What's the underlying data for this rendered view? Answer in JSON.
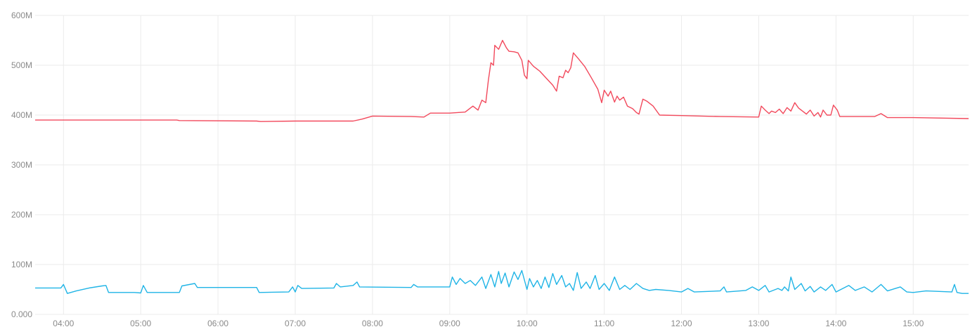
{
  "chart_data": {
    "type": "line",
    "title": "",
    "xlabel": "",
    "ylabel": "",
    "ylim": [
      0,
      600000000
    ],
    "grid": true,
    "legend": "none",
    "y_ticks": [
      {
        "value": 0,
        "label": "0.000"
      },
      {
        "value": 100000000,
        "label": "100M"
      },
      {
        "value": 200000000,
        "label": "200M"
      },
      {
        "value": 300000000,
        "label": "300M"
      },
      {
        "value": 400000000,
        "label": "400M"
      },
      {
        "value": 500000000,
        "label": "500M"
      },
      {
        "value": 600000000,
        "label": "600M"
      }
    ],
    "x_range": [
      "03:38",
      "15:43"
    ],
    "x_ticks": [
      "04:00",
      "05:00",
      "06:00",
      "07:00",
      "08:00",
      "09:00",
      "10:00",
      "11:00",
      "12:00",
      "13:00",
      "14:00",
      "15:00"
    ],
    "series": [
      {
        "color": "#f2495c",
        "points": [
          [
            "03:38",
            390
          ],
          [
            "05:00",
            390
          ],
          [
            "05:28",
            390
          ],
          [
            "05:30",
            389
          ],
          [
            "06:30",
            388
          ],
          [
            "06:33",
            387
          ],
          [
            "07:00",
            388
          ],
          [
            "07:45",
            388
          ],
          [
            "07:52",
            392
          ],
          [
            "08:00",
            398
          ],
          [
            "08:30",
            397
          ],
          [
            "08:40",
            396
          ],
          [
            "08:45",
            404
          ],
          [
            "09:00",
            404
          ],
          [
            "09:12",
            406
          ],
          [
            "09:18",
            418
          ],
          [
            "09:22",
            410
          ],
          [
            "09:25",
            430
          ],
          [
            "09:28",
            425
          ],
          [
            "09:30",
            470
          ],
          [
            "09:32",
            505
          ],
          [
            "09:34",
            500
          ],
          [
            "09:35",
            540
          ],
          [
            "09:38",
            532
          ],
          [
            "09:41",
            550
          ],
          [
            "09:44",
            535
          ],
          [
            "09:46",
            528
          ],
          [
            "09:50",
            527
          ],
          [
            "09:53",
            525
          ],
          [
            "09:56",
            510
          ],
          [
            "09:58",
            480
          ],
          [
            "10:00",
            473
          ],
          [
            "10:01",
            510
          ],
          [
            "10:05",
            498
          ],
          [
            "10:10",
            488
          ],
          [
            "10:15",
            474
          ],
          [
            "10:20",
            460
          ],
          [
            "10:23",
            448
          ],
          [
            "10:25",
            478
          ],
          [
            "10:28",
            475
          ],
          [
            "10:30",
            490
          ],
          [
            "10:32",
            485
          ],
          [
            "10:34",
            495
          ],
          [
            "10:36",
            525
          ],
          [
            "10:40",
            513
          ],
          [
            "10:45",
            497
          ],
          [
            "10:50",
            475
          ],
          [
            "10:55",
            452
          ],
          [
            "10:58",
            425
          ],
          [
            "11:00",
            450
          ],
          [
            "11:03",
            438
          ],
          [
            "11:05",
            448
          ],
          [
            "11:08",
            426
          ],
          [
            "11:10",
            438
          ],
          [
            "11:12",
            430
          ],
          [
            "11:15",
            436
          ],
          [
            "11:18",
            418
          ],
          [
            "11:22",
            413
          ],
          [
            "11:25",
            405
          ],
          [
            "11:27",
            402
          ],
          [
            "11:30",
            432
          ],
          [
            "11:33",
            428
          ],
          [
            "11:38",
            418
          ],
          [
            "11:43",
            400
          ],
          [
            "12:00",
            399
          ],
          [
            "12:30",
            397
          ],
          [
            "13:00",
            396
          ],
          [
            "13:02",
            418
          ],
          [
            "13:05",
            410
          ],
          [
            "13:08",
            403
          ],
          [
            "13:10",
            408
          ],
          [
            "13:13",
            405
          ],
          [
            "13:16",
            412
          ],
          [
            "13:19",
            403
          ],
          [
            "13:22",
            415
          ],
          [
            "13:25",
            408
          ],
          [
            "13:28",
            425
          ],
          [
            "13:31",
            414
          ],
          [
            "13:34",
            408
          ],
          [
            "13:37",
            402
          ],
          [
            "13:40",
            410
          ],
          [
            "13:43",
            398
          ],
          [
            "13:46",
            405
          ],
          [
            "13:48",
            396
          ],
          [
            "13:50",
            410
          ],
          [
            "13:53",
            400
          ],
          [
            "13:56",
            400
          ],
          [
            "13:58",
            420
          ],
          [
            "14:01",
            410
          ],
          [
            "14:03",
            397
          ],
          [
            "14:20",
            397
          ],
          [
            "14:30",
            397
          ],
          [
            "14:35",
            403
          ],
          [
            "14:40",
            395
          ],
          [
            "15:00",
            395
          ],
          [
            "15:43",
            393
          ]
        ]
      },
      {
        "color": "#1fb4e6",
        "points": [
          [
            "03:38",
            53
          ],
          [
            "03:58",
            53
          ],
          [
            "04:00",
            60
          ],
          [
            "04:03",
            42
          ],
          [
            "04:10",
            47
          ],
          [
            "04:20",
            53
          ],
          [
            "04:30",
            57
          ],
          [
            "04:33",
            58
          ],
          [
            "04:35",
            44
          ],
          [
            "04:55",
            44
          ],
          [
            "05:00",
            43
          ],
          [
            "05:02",
            58
          ],
          [
            "05:05",
            44
          ],
          [
            "05:30",
            44
          ],
          [
            "05:32",
            57
          ],
          [
            "05:42",
            62
          ],
          [
            "05:44",
            54
          ],
          [
            "06:30",
            54
          ],
          [
            "06:32",
            44
          ],
          [
            "06:55",
            45
          ],
          [
            "06:58",
            55
          ],
          [
            "07:00",
            45
          ],
          [
            "07:02",
            58
          ],
          [
            "07:05",
            52
          ],
          [
            "07:30",
            53
          ],
          [
            "07:32",
            62
          ],
          [
            "07:35",
            55
          ],
          [
            "07:45",
            58
          ],
          [
            "07:48",
            65
          ],
          [
            "07:50",
            55
          ],
          [
            "08:30",
            54
          ],
          [
            "08:32",
            60
          ],
          [
            "08:35",
            55
          ],
          [
            "09:00",
            55
          ],
          [
            "09:02",
            75
          ],
          [
            "09:05",
            60
          ],
          [
            "09:08",
            72
          ],
          [
            "09:12",
            62
          ],
          [
            "09:16",
            68
          ],
          [
            "09:20",
            58
          ],
          [
            "09:25",
            75
          ],
          [
            "09:28",
            52
          ],
          [
            "09:32",
            80
          ],
          [
            "09:35",
            55
          ],
          [
            "09:38",
            86
          ],
          [
            "09:40",
            62
          ],
          [
            "09:43",
            83
          ],
          [
            "09:46",
            55
          ],
          [
            "09:50",
            85
          ],
          [
            "09:53",
            70
          ],
          [
            "09:56",
            88
          ],
          [
            "10:00",
            50
          ],
          [
            "10:02",
            72
          ],
          [
            "10:05",
            55
          ],
          [
            "10:08",
            68
          ],
          [
            "10:11",
            52
          ],
          [
            "10:14",
            75
          ],
          [
            "10:17",
            54
          ],
          [
            "10:20",
            82
          ],
          [
            "10:23",
            60
          ],
          [
            "10:27",
            78
          ],
          [
            "10:30",
            55
          ],
          [
            "10:33",
            62
          ],
          [
            "10:36",
            48
          ],
          [
            "10:39",
            84
          ],
          [
            "10:42",
            52
          ],
          [
            "10:46",
            65
          ],
          [
            "10:49",
            52
          ],
          [
            "10:53",
            78
          ],
          [
            "10:56",
            50
          ],
          [
            "11:00",
            62
          ],
          [
            "11:04",
            48
          ],
          [
            "11:08",
            75
          ],
          [
            "11:12",
            50
          ],
          [
            "11:16",
            58
          ],
          [
            "11:20",
            50
          ],
          [
            "11:25",
            62
          ],
          [
            "11:30",
            52
          ],
          [
            "11:35",
            48
          ],
          [
            "11:40",
            50
          ],
          [
            "11:50",
            48
          ],
          [
            "12:00",
            45
          ],
          [
            "12:05",
            52
          ],
          [
            "12:10",
            45
          ],
          [
            "12:30",
            47
          ],
          [
            "12:33",
            55
          ],
          [
            "12:35",
            45
          ],
          [
            "12:50",
            48
          ],
          [
            "12:55",
            55
          ],
          [
            "13:00",
            48
          ],
          [
            "13:05",
            58
          ],
          [
            "13:08",
            45
          ],
          [
            "13:15",
            52
          ],
          [
            "13:18",
            48
          ],
          [
            "13:20",
            55
          ],
          [
            "13:23",
            47
          ],
          [
            "13:25",
            75
          ],
          [
            "13:28",
            50
          ],
          [
            "13:33",
            62
          ],
          [
            "13:36",
            47
          ],
          [
            "13:40",
            56
          ],
          [
            "13:43",
            45
          ],
          [
            "13:48",
            55
          ],
          [
            "13:52",
            48
          ],
          [
            "13:57",
            60
          ],
          [
            "14:00",
            45
          ],
          [
            "14:10",
            58
          ],
          [
            "14:15",
            48
          ],
          [
            "14:22",
            55
          ],
          [
            "14:28",
            45
          ],
          [
            "14:35",
            60
          ],
          [
            "14:40",
            47
          ],
          [
            "14:50",
            55
          ],
          [
            "14:55",
            45
          ],
          [
            "15:00",
            44
          ],
          [
            "15:10",
            47
          ],
          [
            "15:20",
            46
          ],
          [
            "15:30",
            45
          ],
          [
            "15:32",
            60
          ],
          [
            "15:34",
            44
          ],
          [
            "15:38",
            42
          ],
          [
            "15:43",
            42
          ]
        ]
      }
    ]
  }
}
